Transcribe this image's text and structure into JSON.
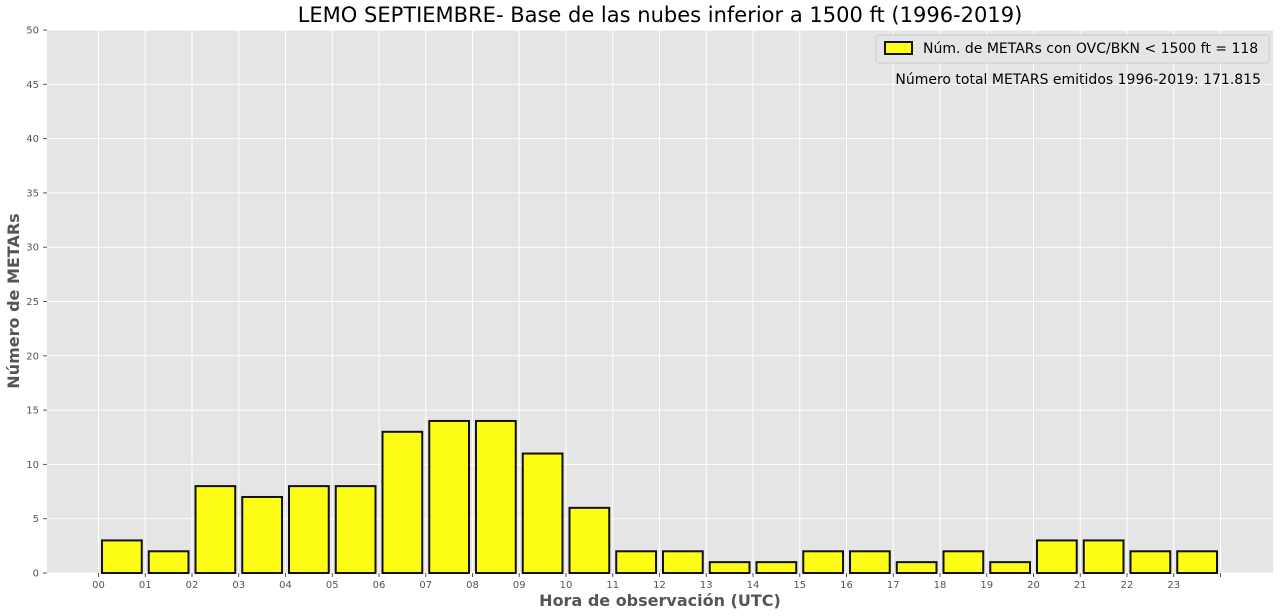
{
  "chart_data": {
    "type": "bar",
    "title": "LEMO SEPTIEMBRE- Base de las nubes inferior a 1500 ft (1996-2019)",
    "xlabel": "Hora de observación (UTC)",
    "ylabel": "Número de METARs",
    "categories": [
      "00",
      "01",
      "02",
      "03",
      "04",
      "05",
      "06",
      "07",
      "08",
      "09",
      "10",
      "11",
      "12",
      "13",
      "14",
      "15",
      "16",
      "17",
      "18",
      "19",
      "20",
      "21",
      "22",
      "23"
    ],
    "x_tick_labels": [
      "00",
      "01",
      "02",
      "03",
      "04",
      "05",
      "06",
      "07",
      "08",
      "09",
      "10",
      "11",
      "12",
      "13",
      "14",
      "15",
      "16",
      "17",
      "18",
      "19",
      "20",
      "21",
      "22",
      "23",
      ""
    ],
    "series": [
      {
        "name": "Núm. de METARs con OVC/BKN < 1500 ft = 118",
        "values": [
          3,
          2,
          8,
          7,
          8,
          8,
          13,
          14,
          14,
          11,
          6,
          2,
          2,
          1,
          1,
          2,
          2,
          1,
          2,
          1,
          3,
          3,
          2,
          2
        ]
      }
    ],
    "ylim": [
      0,
      50
    ],
    "yticks": [
      0,
      5,
      10,
      15,
      20,
      25,
      30,
      35,
      40,
      45,
      50
    ],
    "annotation": "Número total METARS emitidos 1996-2019: 171.815",
    "legend_position": "top-right",
    "grid": true,
    "colors": {
      "bar_fill": "#fcfc14",
      "bar_edge": "#111111",
      "plot_bg": "#e5e5e5",
      "grid": "#ffffff"
    }
  }
}
